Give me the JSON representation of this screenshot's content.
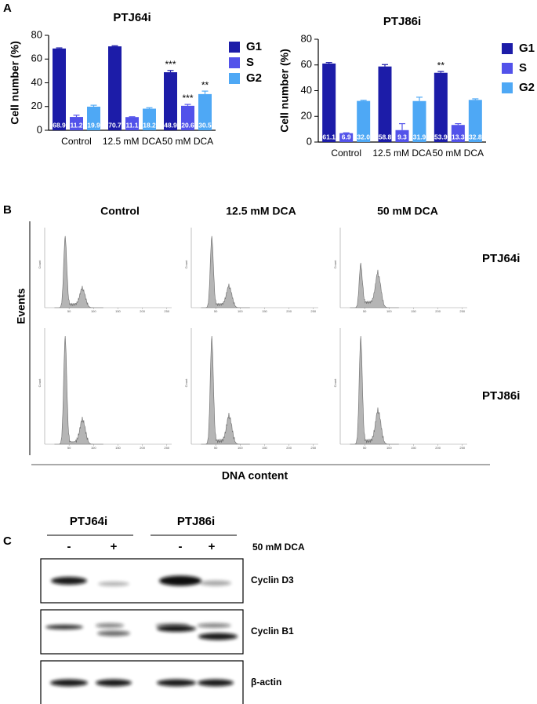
{
  "panel_labels": [
    "A",
    "B",
    "C"
  ],
  "chart_data": [
    {
      "type": "bar",
      "title": "PTJ64i",
      "ylabel": "Cell number (%)",
      "categories": [
        "Control",
        "12.5 mM DCA",
        "50 mM DCA"
      ],
      "ylim": [
        0,
        80
      ],
      "yticks": [
        0,
        20,
        40,
        60,
        80
      ],
      "legend": "right",
      "series": [
        {
          "name": "G1",
          "color": "#1c1ca8",
          "values": [
            68.9,
            70.7,
            48.9
          ],
          "errors": [
            0.5,
            0.5,
            1.5
          ],
          "significance": [
            null,
            null,
            "***"
          ]
        },
        {
          "name": "S",
          "color": "#5252ea",
          "values": [
            11.2,
            11.1,
            20.6
          ],
          "errors": [
            1.5,
            0.3,
            1.2
          ],
          "significance": [
            null,
            null,
            "***"
          ]
        },
        {
          "name": "G2",
          "color": "#4ea8f5",
          "values": [
            19.9,
            18.2,
            30.5
          ],
          "errors": [
            1.2,
            0.8,
            2.5
          ],
          "significance": [
            null,
            null,
            "**"
          ]
        }
      ]
    },
    {
      "type": "bar",
      "title": "PTJ86i",
      "ylabel": "Cell number (%)",
      "categories": [
        "Control",
        "12.5 mM DCA",
        "50 mM DCA"
      ],
      "ylim": [
        0,
        80
      ],
      "yticks": [
        0,
        20,
        40,
        60,
        80
      ],
      "legend": "right",
      "series": [
        {
          "name": "G1",
          "color": "#1c1ca8",
          "values": [
            61.1,
            58.8,
            53.9
          ],
          "errors": [
            0.8,
            1.5,
            1.0
          ],
          "significance": [
            null,
            null,
            "**"
          ]
        },
        {
          "name": "S",
          "color": "#5252ea",
          "values": [
            6.9,
            9.3,
            13.3
          ],
          "errors": [
            0.3,
            5.0,
            1.0
          ]
        },
        {
          "name": "G2",
          "color": "#4ea8f5",
          "values": [
            32.0,
            31.9,
            32.8
          ],
          "value_labels": [
            "32.0",
            "31.9",
            "32.8"
          ],
          "errors": [
            0.5,
            3.0,
            0.8
          ]
        }
      ]
    }
  ],
  "flow": {
    "columns": [
      "Control",
      "12.5 mM DCA",
      "50 mM DCA"
    ],
    "rows": [
      "PTJ64i",
      "PTJ86i"
    ],
    "ylabel": "Events",
    "xlabel": "DNA content",
    "panel_ylabel": "Count",
    "xlim": [
      0,
      260
    ],
    "xticks": [
      50,
      100,
      150,
      200,
      250
    ]
  },
  "blot": {
    "groups": [
      "PTJ64i",
      "PTJ86i"
    ],
    "lanes": [
      "-",
      "+",
      "-",
      "+"
    ],
    "treatment": "50 mM DCA",
    "proteins": [
      "Cyclin D3",
      "Cyclin B1",
      "β-actin"
    ]
  }
}
